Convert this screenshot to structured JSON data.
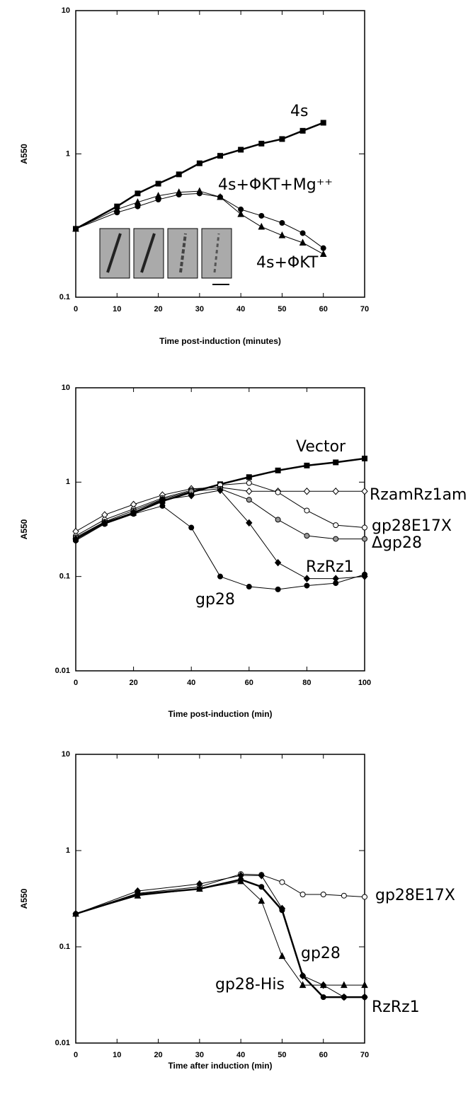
{
  "chart_data": [
    {
      "type": "line",
      "log_y": true,
      "xlabel": "Time post-induction (minutes)",
      "ylabel": "A550",
      "xlim": [
        0,
        70
      ],
      "ylim": [
        0.1,
        10
      ],
      "xticks": [
        0,
        10,
        20,
        30,
        40,
        50,
        60,
        70
      ],
      "yticks": [
        0.1,
        1,
        10
      ],
      "x": [
        0,
        10,
        15,
        20,
        25,
        30,
        35,
        40,
        45,
        50,
        55,
        60
      ],
      "series": [
        {
          "name": "4s",
          "color": "#000000",
          "marker": "square",
          "fill": "#000000",
          "linewidth": 2.5,
          "values": [
            0.3,
            0.43,
            0.53,
            0.62,
            0.72,
            0.86,
            0.97,
            1.07,
            1.18,
            1.27,
            1.45,
            1.65
          ]
        },
        {
          "name": "4s+ΦKT+Mg⁺⁺",
          "color": "#000000",
          "marker": "circle",
          "fill": "#000000",
          "linewidth": 1,
          "values": [
            0.3,
            0.39,
            0.43,
            0.48,
            0.52,
            0.53,
            0.5,
            0.41,
            0.37,
            0.33,
            0.28,
            0.22
          ]
        },
        {
          "name": "4s+ΦKT",
          "color": "#000000",
          "marker": "triangle",
          "fill": "#000000",
          "linewidth": 1,
          "values": [
            0.3,
            0.41,
            0.46,
            0.51,
            0.54,
            0.55,
            0.5,
            0.38,
            0.31,
            0.27,
            0.24,
            0.2
          ]
        }
      ]
    },
    {
      "type": "line",
      "log_y": true,
      "xlabel": "Time post-induction (min)",
      "ylabel": "A550",
      "xlim": [
        0,
        100
      ],
      "ylim": [
        0.01,
        10
      ],
      "xticks": [
        0,
        20,
        40,
        60,
        80,
        100
      ],
      "yticks": [
        0.01,
        0.1,
        1,
        10
      ],
      "x": [
        0,
        10,
        20,
        30,
        40,
        50,
        60,
        70,
        80,
        90,
        100
      ],
      "series": [
        {
          "name": "Vector",
          "color": "#000000",
          "marker": "square",
          "fill": "#000000",
          "linewidth": 2.5,
          "values": [
            0.25,
            0.37,
            0.47,
            0.63,
            0.78,
            0.95,
            1.13,
            1.33,
            1.5,
            1.62,
            1.78
          ]
        },
        {
          "name": "RzamRz1am",
          "color": "#000000",
          "marker": "diamond",
          "fill": "#ffffff",
          "linewidth": 1,
          "values": [
            0.3,
            0.45,
            0.58,
            0.73,
            0.85,
            0.88,
            0.8,
            0.8,
            0.8,
            0.8,
            0.8
          ]
        },
        {
          "name": "gp28E17X",
          "color": "#000000",
          "marker": "circle",
          "fill": "#ffffff",
          "linewidth": 1,
          "values": [
            0.27,
            0.4,
            0.52,
            0.68,
            0.82,
            0.93,
            0.98,
            0.78,
            0.5,
            0.35,
            0.33
          ]
        },
        {
          "name": "Δgp28",
          "color": "#000000",
          "marker": "circle",
          "fill": "#999999",
          "linewidth": 1,
          "values": [
            0.26,
            0.38,
            0.5,
            0.66,
            0.8,
            0.85,
            0.65,
            0.4,
            0.27,
            0.25,
            0.25
          ]
        },
        {
          "name": "RzRz1",
          "color": "#000000",
          "marker": "diamond",
          "fill": "#000000",
          "linewidth": 1,
          "values": [
            0.25,
            0.37,
            0.48,
            0.65,
            0.72,
            0.82,
            0.37,
            0.14,
            0.095,
            0.095,
            0.1
          ]
        },
        {
          "name": "gp28",
          "color": "#000000",
          "marker": "circle",
          "fill": "#000000",
          "linewidth": 1,
          "values": [
            0.24,
            0.36,
            0.46,
            0.56,
            0.33,
            0.1,
            0.078,
            0.073,
            0.08,
            0.085,
            0.105
          ]
        }
      ]
    },
    {
      "type": "line",
      "log_y": true,
      "xlabel": "Time after induction (min)",
      "ylabel": "A550",
      "xlim": [
        0,
        70
      ],
      "ylim": [
        0.01,
        10
      ],
      "xticks": [
        0,
        10,
        20,
        30,
        40,
        50,
        60,
        70
      ],
      "yticks": [
        0.01,
        0.1,
        1,
        10
      ],
      "x": [
        0,
        15,
        30,
        40,
        45,
        50,
        55,
        60,
        65,
        70
      ],
      "series": [
        {
          "name": "gp28E17X",
          "color": "#000000",
          "marker": "circle",
          "fill": "#ffffff",
          "linewidth": 1,
          "values": [
            0.22,
            0.36,
            0.42,
            0.57,
            0.56,
            0.47,
            0.35,
            0.35,
            0.34,
            0.33
          ]
        },
        {
          "name": "gp28",
          "color": "#000000",
          "marker": "circle",
          "fill": "#000000",
          "linewidth": 2.5,
          "values": [
            0.22,
            0.35,
            0.4,
            0.5,
            0.42,
            0.24,
            0.05,
            0.03,
            0.03,
            0.03
          ]
        },
        {
          "name": "gp28-His",
          "color": "#000000",
          "marker": "triangle",
          "fill": "#000000",
          "linewidth": 1,
          "values": [
            0.22,
            0.34,
            0.4,
            0.48,
            0.3,
            0.08,
            0.04,
            0.04,
            0.04,
            0.04
          ]
        },
        {
          "name": "RzRz1",
          "color": "#000000",
          "marker": "diamond",
          "fill": "#000000",
          "linewidth": 1,
          "values": [
            0.22,
            0.38,
            0.45,
            0.55,
            0.55,
            0.25,
            0.05,
            0.04,
            0.03,
            0.03
          ]
        }
      ]
    }
  ]
}
